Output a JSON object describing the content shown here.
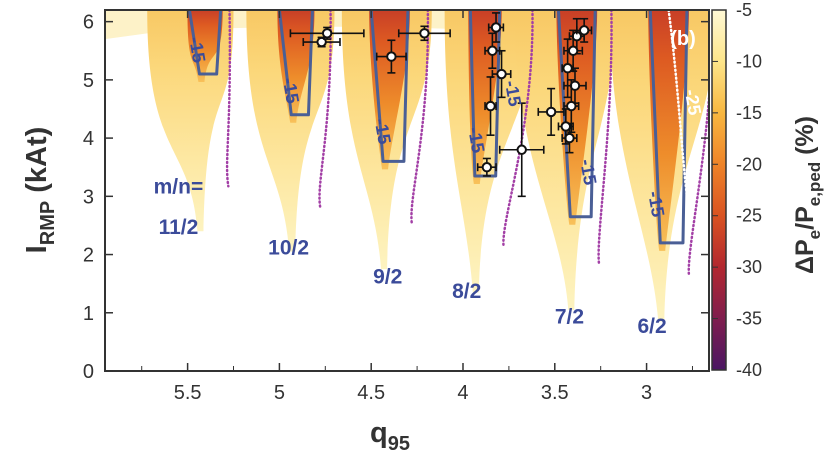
{
  "chart_data": {
    "type": "heatmap",
    "panel_label": "(b)",
    "x_label": "q",
    "x_label_sub": "95",
    "y_label": "I",
    "y_label_sub": "RMP",
    "y_label_unit": " (kAt)",
    "x_axis": {
      "min": 2.5,
      "max": 5.8,
      "inverted": true,
      "ticks": [
        5.5,
        5,
        4.5,
        4,
        3.5,
        3
      ],
      "tick_labels": [
        "5.5",
        "5",
        "4.5",
        "4",
        "3.5",
        "3"
      ]
    },
    "y_axis": {
      "min": 0,
      "max": 6.2,
      "ticks": [
        0,
        1,
        2,
        3,
        4,
        5,
        6
      ],
      "tick_labels": [
        "0",
        "1",
        "2",
        "3",
        "4",
        "5",
        "6"
      ]
    },
    "colorbar": {
      "label_prefix": "ΔP",
      "label_sub1": "e",
      "label_mid": "/P",
      "label_sub2": "e,ped",
      "label_unit": " (%)",
      "min": -40,
      "max": -5,
      "ticks": [
        -5,
        -10,
        -15,
        -20,
        -25,
        -30,
        -35,
        -40
      ],
      "tick_labels": [
        "-5",
        "-10",
        "-15",
        "-20",
        "-25",
        "-30",
        "-35",
        "-40"
      ],
      "colors": [
        "#fff9d6",
        "#fde58a",
        "#f8b740",
        "#ee8328",
        "#d95322",
        "#b2272f",
        "#7f1e4e",
        "#4a1663"
      ]
    },
    "mode_labels": [
      {
        "text": "m/n=",
        "q": 5.55,
        "i": 3.05
      },
      {
        "text": "11/2",
        "q": 5.55,
        "i": 2.35
      },
      {
        "text": "10/2",
        "q": 4.95,
        "i": 2.0
      },
      {
        "text": "9/2",
        "q": 4.41,
        "i": 1.5
      },
      {
        "text": "8/2",
        "q": 3.98,
        "i": 1.25
      },
      {
        "text": "7/2",
        "q": 3.42,
        "i": 0.82
      },
      {
        "text": "6/2",
        "q": 2.97,
        "i": 0.65
      }
    ],
    "contour_level": -15,
    "contour_labels": [
      {
        "text": "-15",
        "q": 5.48,
        "i": 5.5
      },
      {
        "text": "-15",
        "q": 4.97,
        "i": 4.8
      },
      {
        "text": "-15",
        "q": 4.47,
        "i": 4.1
      },
      {
        "text": "-15",
        "q": 3.96,
        "i": 3.95
      },
      {
        "text": "-15",
        "q": 3.76,
        "i": 4.75
      },
      {
        "text": "-15",
        "q": 3.35,
        "i": 3.4
      },
      {
        "text": "-15",
        "q": 2.98,
        "i": 2.85
      }
    ],
    "contour_label_white": {
      "text": "-25",
      "q": 2.78,
      "i": 4.6
    },
    "lobes": [
      {
        "center": 5.43,
        "bottom_i": 2.4,
        "upper_q": 5.72,
        "lower_q": 5.25,
        "contour_min_i": 5.1,
        "contour_q": [
          5.49,
          5.32
        ]
      },
      {
        "center": 4.93,
        "bottom_i": 2.05,
        "upper_q": 5.18,
        "lower_q": 4.7,
        "contour_min_i": 4.4,
        "contour_q": [
          5.0,
          4.82
        ]
      },
      {
        "center": 4.43,
        "bottom_i": 1.75,
        "upper_q": 4.66,
        "lower_q": 4.17,
        "contour_min_i": 3.6,
        "contour_q": [
          4.5,
          4.3
        ]
      },
      {
        "center": 3.93,
        "bottom_i": 1.35,
        "upper_q": 4.1,
        "lower_q": 3.6,
        "contour_min_i": 3.35,
        "contour_q": [
          3.96,
          3.8
        ]
      },
      {
        "center": 3.41,
        "bottom_i": 1.05,
        "upper_q": 3.72,
        "lower_q": 3.17,
        "contour_min_i": 2.65,
        "contour_q": [
          3.48,
          3.28
        ]
      },
      {
        "center": 2.92,
        "bottom_i": 0.85,
        "upper_q": 3.2,
        "lower_q": 2.62,
        "contour_min_i": 2.2,
        "contour_q": [
          2.98,
          2.78
        ]
      }
    ],
    "data_points": [
      {
        "q": 4.77,
        "i": 5.65,
        "q_err": 0.1,
        "i_err": 0.08
      },
      {
        "q": 4.74,
        "i": 5.8,
        "q_err": 0.2,
        "i_err": 0.1
      },
      {
        "q": 4.21,
        "i": 5.8,
        "q_err": 0.14,
        "i_err": 0.12
      },
      {
        "q": 4.39,
        "i": 5.4,
        "q_err": 0.08,
        "i_err": 0.28
      },
      {
        "q": 3.82,
        "i": 5.9,
        "q_err": 0.04,
        "i_err": 0.25
      },
      {
        "q": 3.84,
        "i": 5.5,
        "q_err": 0.04,
        "i_err": 0.3
      },
      {
        "q": 3.85,
        "i": 4.55,
        "q_err": 0.03,
        "i_err": 0.5
      },
      {
        "q": 3.79,
        "i": 5.1,
        "q_err": 0.05,
        "i_err": 0.4
      },
      {
        "q": 3.87,
        "i": 3.5,
        "q_err": 0.05,
        "i_err": 0.15
      },
      {
        "q": 3.68,
        "i": 3.8,
        "q_err": 0.12,
        "i_err": 0.8
      },
      {
        "q": 3.52,
        "i": 4.45,
        "q_err": 0.07,
        "i_err": 0.4
      },
      {
        "q": 3.42,
        "i": 4.0,
        "q_err": 0.04,
        "i_err": 0.25
      },
      {
        "q": 3.38,
        "i": 5.75,
        "q_err": 0.04,
        "i_err": 0.3
      },
      {
        "q": 3.34,
        "i": 5.85,
        "q_err": 0.04,
        "i_err": 0.2
      },
      {
        "q": 3.4,
        "i": 5.5,
        "q_err": 0.05,
        "i_err": 0.35
      },
      {
        "q": 3.43,
        "i": 5.2,
        "q_err": 0.03,
        "i_err": 0.5
      },
      {
        "q": 3.39,
        "i": 4.9,
        "q_err": 0.06,
        "i_err": 0.3
      },
      {
        "q": 3.41,
        "i": 4.55,
        "q_err": 0.04,
        "i_err": 0.45
      },
      {
        "q": 3.44,
        "i": 4.2,
        "q_err": 0.04,
        "i_err": 0.3
      }
    ],
    "grid": false
  }
}
